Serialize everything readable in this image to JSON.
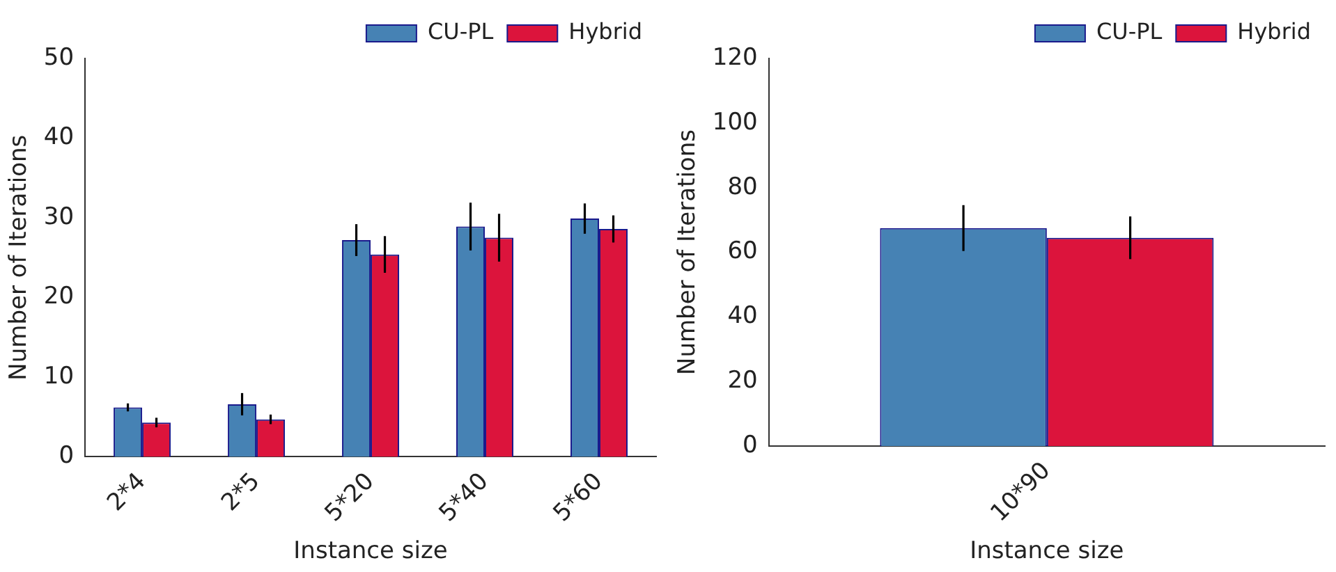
{
  "chart_data": [
    {
      "type": "bar",
      "xlabel": "Instance size",
      "ylabel": "Number of Iterations",
      "categories": [
        "2*4",
        "2*5",
        "5*20",
        "5*40",
        "5*60"
      ],
      "ylim": [
        0,
        50
      ],
      "yticks": [
        0,
        10,
        20,
        30,
        40,
        50
      ],
      "legend": "top right",
      "series": [
        {
          "name": "CU-PL",
          "color": "#4682b4",
          "values": [
            6.2,
            6.6,
            27.2,
            28.9,
            29.9
          ],
          "errors": [
            0.5,
            1.4,
            2.0,
            3.0,
            1.9
          ]
        },
        {
          "name": "Hybrid",
          "color": "#dc143c",
          "values": [
            4.3,
            4.7,
            25.4,
            27.5,
            28.6
          ],
          "errors": [
            0.6,
            0.6,
            2.3,
            3.0,
            1.7
          ]
        }
      ]
    },
    {
      "type": "bar",
      "xlabel": "Instance size",
      "ylabel": "Number of Iterations",
      "categories": [
        "10*90"
      ],
      "ylim": [
        0,
        120
      ],
      "yticks": [
        0,
        20,
        40,
        60,
        80,
        100,
        120
      ],
      "legend": "top right",
      "series": [
        {
          "name": "CU-PL",
          "color": "#4682b4",
          "values": [
            67.5
          ],
          "errors": [
            7.1
          ]
        },
        {
          "name": "Hybrid",
          "color": "#dc143c",
          "values": [
            64.5
          ],
          "errors": [
            6.6
          ]
        }
      ]
    }
  ]
}
